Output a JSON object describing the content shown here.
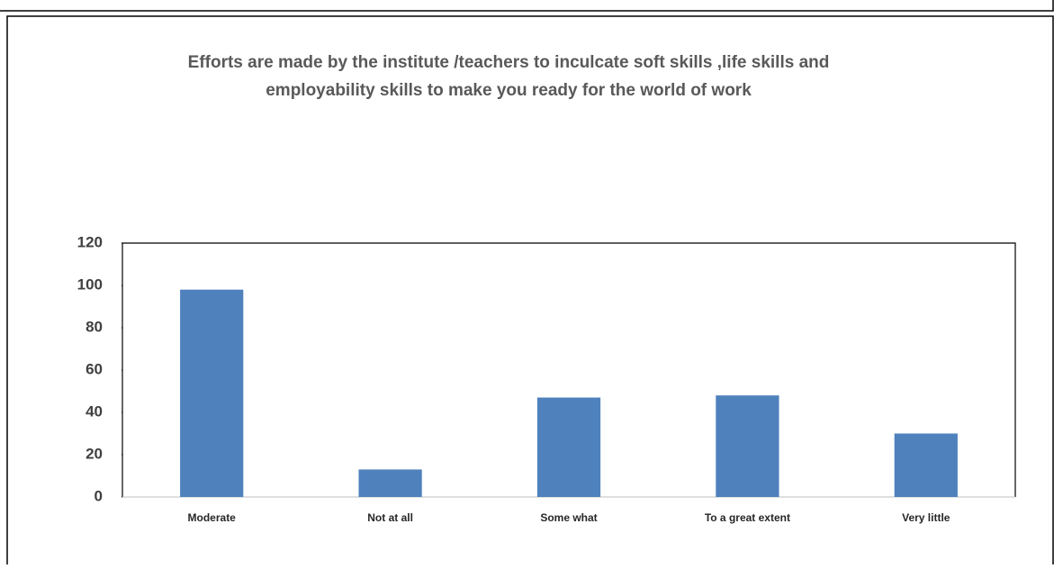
{
  "chart_data": {
    "type": "bar",
    "title": [
      "Efforts are made by the institute /teachers to inculcate soft skills ,life skills  and",
      "employability skills to make you ready for the world of work"
    ],
    "categories": [
      "Moderate",
      "Not at all",
      "Some what",
      "To a great extent",
      "Very little"
    ],
    "values": [
      98,
      13,
      47,
      48,
      30
    ],
    "color": "#4f81bd",
    "ylim": [
      0,
      120
    ],
    "yticks": [
      0,
      20,
      40,
      60,
      80,
      100,
      120
    ],
    "grid": false
  }
}
